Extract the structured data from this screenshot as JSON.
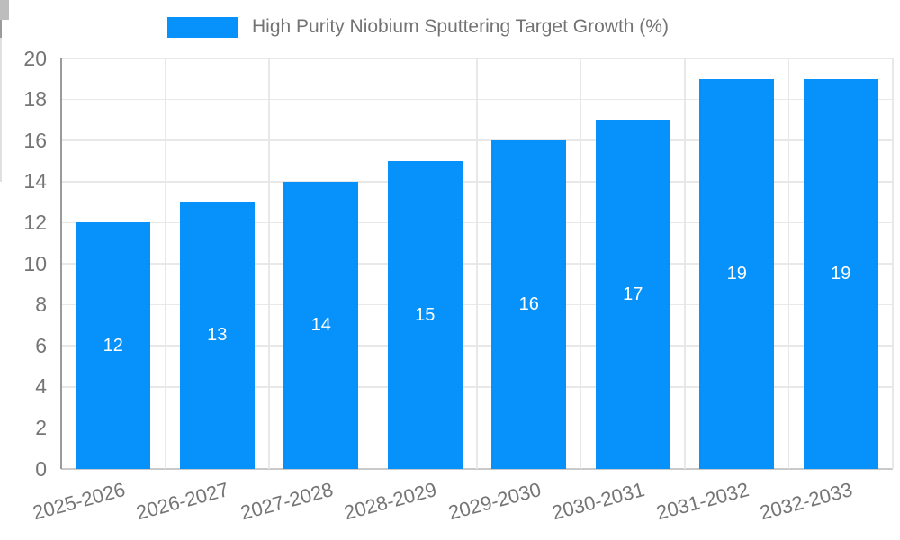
{
  "legend": {
    "label": "High Purity Niobium Sputtering Target Growth (%)"
  },
  "colors": {
    "bar": "#0691FB",
    "axis": "#9a9a9a",
    "grid": "#e8e8e8",
    "tick_text": "#757575",
    "legend_text": "#737373",
    "bar_value_text": "#ffffff"
  },
  "chart_data": {
    "type": "bar",
    "title": "High Purity Niobium Sputtering Target Growth (%)",
    "categories": [
      "2025-2026",
      "2026-2027",
      "2027-2028",
      "2028-2029",
      "2029-2030",
      "2030-2031",
      "2031-2032",
      "2032-2033"
    ],
    "values": [
      12,
      13,
      14,
      15,
      16,
      17,
      19,
      19
    ],
    "series_name": "High Purity Niobium Sputtering Target Growth (%)",
    "xlabel": "",
    "ylabel": "",
    "ylim": [
      0,
      20
    ],
    "ytick_step": 2,
    "ytick_labels": [
      "0",
      "2",
      "4",
      "6",
      "8",
      "10",
      "12",
      "14",
      "16",
      "18",
      "20"
    ],
    "grid": "both",
    "legend_position": "top",
    "bar_value_labels_visible": true,
    "xlabel_rotation_deg": -15
  }
}
